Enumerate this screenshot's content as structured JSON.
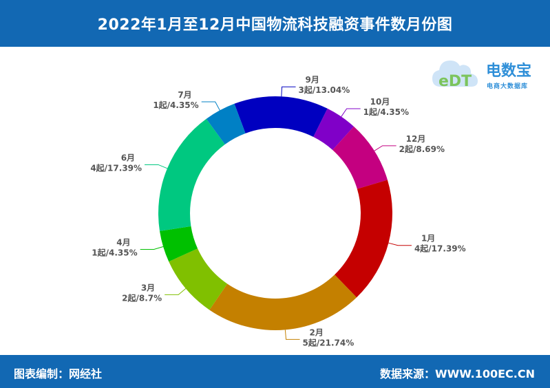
{
  "title": "2022年1月至12月中国物流科技融资事件数月份图",
  "footer": {
    "left": "图表编制：网经社",
    "right": "数据来源：WWW.100EC.CN"
  },
  "watermark": {
    "logo": "eDT",
    "name": "电数宝",
    "tagline": "电商大数据库"
  },
  "chart_data": {
    "type": "pie",
    "donut": true,
    "slices": [
      {
        "month": "1月",
        "label": "4起/17.39%",
        "value": 4,
        "percent": 17.39,
        "color": "#c50000"
      },
      {
        "month": "2月",
        "label": "5起/21.74%",
        "value": 5,
        "percent": 21.74,
        "color": "#c48000"
      },
      {
        "month": "3月",
        "label": "2起/8.7%",
        "value": 2,
        "percent": 8.7,
        "color": "#80c000"
      },
      {
        "month": "4月",
        "label": "1起/4.35%",
        "value": 1,
        "percent": 4.35,
        "color": "#00c000"
      },
      {
        "month": "6月",
        "label": "4起/17.39%",
        "value": 4,
        "percent": 17.39,
        "color": "#00c880"
      },
      {
        "month": "7月",
        "label": "1起/4.35%",
        "value": 1,
        "percent": 4.35,
        "color": "#0080c5"
      },
      {
        "month": "9月",
        "label": "3起/13.04%",
        "value": 3,
        "percent": 13.04,
        "color": "#0000c0"
      },
      {
        "month": "10月",
        "label": "1起/4.35%",
        "value": 1,
        "percent": 4.35,
        "color": "#8000c8"
      },
      {
        "month": "12月",
        "label": "2起/8.69%",
        "value": 2,
        "percent": 8.69,
        "color": "#c40080"
      }
    ]
  }
}
